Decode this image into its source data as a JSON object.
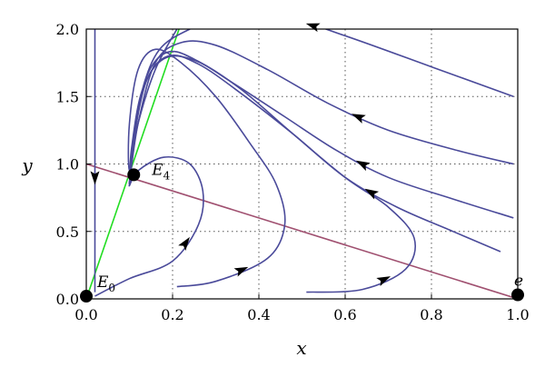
{
  "chart_data": {
    "type": "line",
    "title": "",
    "xlabel": "x",
    "ylabel": "y",
    "xlim": [
      0,
      1
    ],
    "ylim": [
      0,
      2
    ],
    "xticks": [
      "0.0",
      "0.2",
      "0.4",
      "0.6",
      "0.8",
      "1.0"
    ],
    "yticks": [
      "0.0",
      "0.5",
      "1.0",
      "1.5",
      "2.0"
    ],
    "grid": true,
    "colors": {
      "trajectory": "#4a4a9a",
      "isocline_green": "#22dd22",
      "isocline_purple": "#a05070",
      "point": "#000000"
    },
    "isoclines": [
      {
        "color": "green",
        "x": [
          0.0,
          0.215
        ],
        "y": [
          0.0,
          2.0
        ]
      },
      {
        "color": "purple",
        "x": [
          0.0,
          1.0
        ],
        "y": [
          1.0,
          0.0
        ]
      }
    ],
    "equilibria": [
      {
        "label": "E",
        "sub": "0",
        "x": 0.0,
        "y": 0.02
      },
      {
        "label": "E",
        "sub": "4",
        "x": 0.11,
        "y": 0.92
      },
      {
        "label": "e",
        "sub": "",
        "x": 1.0,
        "y": 0.03
      }
    ],
    "series": [
      {
        "x": [
          0.02,
          0.02,
          0.02,
          0.02
        ],
        "y": [
          2.0,
          1.2,
          0.6,
          0.05
        ],
        "arrow_at": 1
      },
      {
        "x": [
          0.02,
          0.1,
          0.2,
          0.26,
          0.27,
          0.24,
          0.18,
          0.12,
          0.1,
          0.105
        ],
        "y": [
          0.02,
          0.15,
          0.28,
          0.55,
          0.8,
          1.0,
          1.05,
          0.95,
          0.84,
          0.88
        ],
        "arrow_at": 2
      },
      {
        "x": [
          0.21,
          0.3,
          0.42,
          0.46,
          0.44,
          0.38,
          0.3,
          0.22,
          0.16,
          0.12,
          0.1,
          0.1,
          0.12,
          0.16,
          0.21
        ],
        "y": [
          0.09,
          0.13,
          0.3,
          0.55,
          0.85,
          1.15,
          1.5,
          1.75,
          1.85,
          1.7,
          1.3,
          0.95,
          1.3,
          1.7,
          2.0
        ],
        "arrow_at": 1
      },
      {
        "x": [
          0.51,
          0.64,
          0.74,
          0.76,
          0.7,
          0.6,
          0.48,
          0.36,
          0.26,
          0.19,
          0.14,
          0.11,
          0.1
        ],
        "y": [
          0.05,
          0.07,
          0.22,
          0.45,
          0.68,
          0.9,
          1.22,
          1.55,
          1.76,
          1.83,
          1.65,
          1.2,
          0.85
        ],
        "arrow_at": 1
      },
      {
        "x": [
          0.96,
          0.85,
          0.72,
          0.6,
          0.48,
          0.36,
          0.26,
          0.19,
          0.14,
          0.11,
          0.1
        ],
        "y": [
          0.35,
          0.5,
          0.68,
          0.9,
          1.22,
          1.52,
          1.74,
          1.8,
          1.62,
          1.18,
          0.85
        ],
        "arrow_at": 2
      },
      {
        "x": [
          0.99,
          0.85,
          0.7,
          0.58,
          0.46,
          0.34,
          0.25,
          0.18,
          0.13,
          0.105,
          0.1
        ],
        "y": [
          0.6,
          0.74,
          0.9,
          1.1,
          1.35,
          1.6,
          1.77,
          1.78,
          1.55,
          1.12,
          0.85
        ],
        "arrow_at": 2
      },
      {
        "x": [
          0.99,
          0.86,
          0.7,
          0.56,
          0.42,
          0.3,
          0.22,
          0.16,
          0.12,
          0.1
        ],
        "y": [
          1.0,
          1.1,
          1.25,
          1.45,
          1.7,
          1.88,
          1.9,
          1.75,
          1.3,
          0.86
        ],
        "arrow_at": 2
      },
      {
        "x": [
          0.99,
          0.8,
          0.6,
          0.45,
          0.32,
          0.24,
          0.17,
          0.13,
          0.11,
          0.1
        ],
        "y": [
          1.5,
          1.72,
          1.95,
          2.1,
          2.1,
          2.0,
          1.85,
          1.55,
          1.15,
          0.85
        ],
        "arrow_at": 2
      }
    ]
  }
}
